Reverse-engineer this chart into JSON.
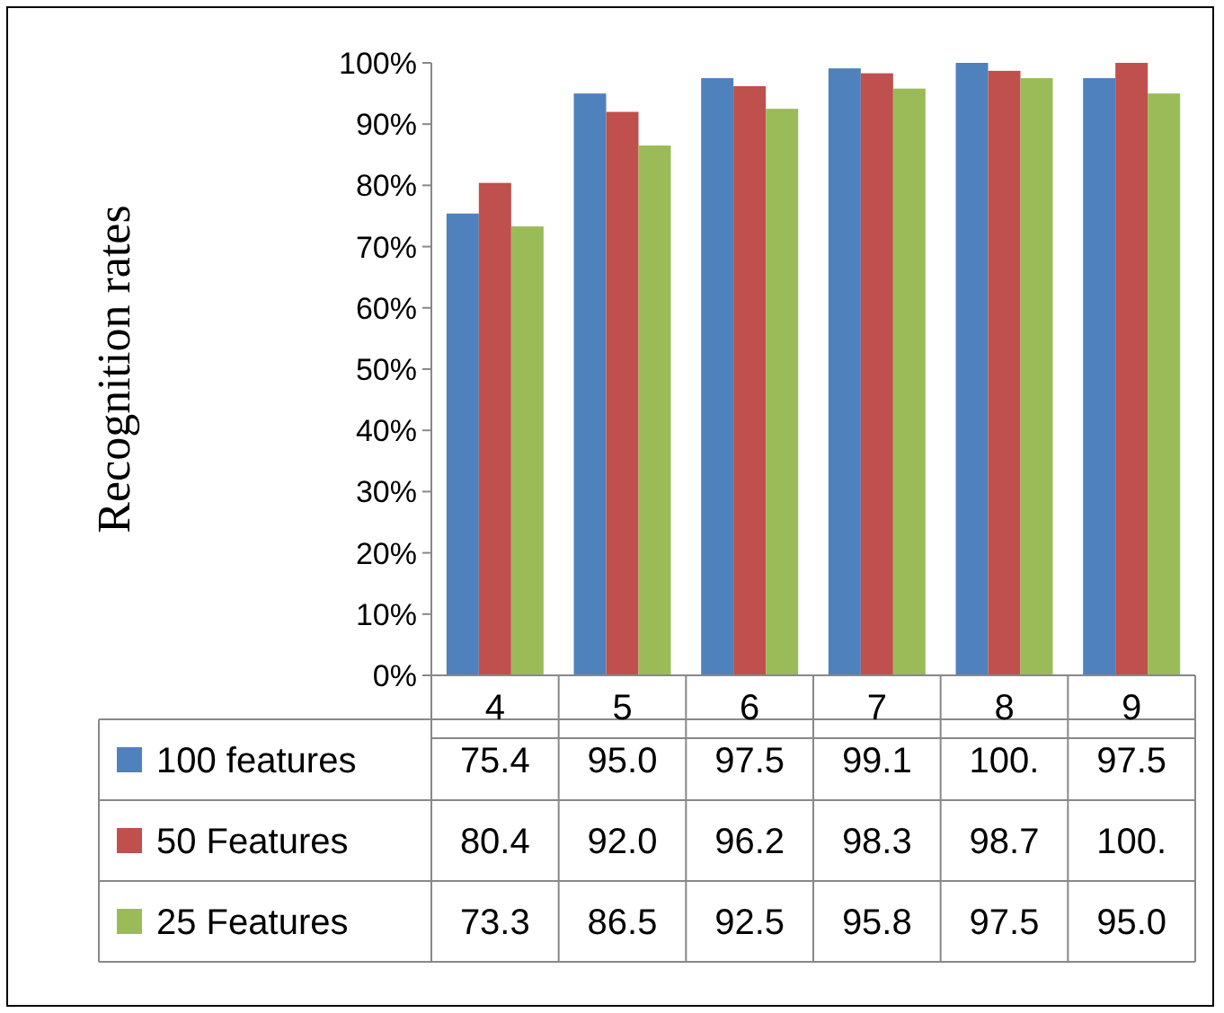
{
  "chart_data": {
    "type": "bar",
    "ylabel": "Recognition rates",
    "categories": [
      "4",
      "5",
      "6",
      "7",
      "8",
      "9"
    ],
    "series": [
      {
        "name": "100 features",
        "color": "#4f81bd",
        "values": [
          75.4,
          95.0,
          97.5,
          99.1,
          100,
          97.5
        ],
        "value_labels": [
          "75.4",
          "95.0",
          "97.5",
          "99.1",
          "100.",
          "97.5"
        ]
      },
      {
        "name": "50 Features",
        "color": "#c0504d",
        "values": [
          80.4,
          92.0,
          96.2,
          98.3,
          98.7,
          100
        ],
        "value_labels": [
          "80.4",
          "92.0",
          "96.2",
          "98.3",
          "98.7",
          "100."
        ]
      },
      {
        "name": "25 Features",
        "color": "#9bbb59",
        "values": [
          73.3,
          86.5,
          92.5,
          95.8,
          97.5,
          95.0
        ],
        "value_labels": [
          "73.3",
          "86.5",
          "92.5",
          "95.8",
          "97.5",
          "95.0"
        ]
      }
    ],
    "ylim": [
      0,
      100
    ],
    "yticks": [
      {
        "value": 0,
        "label": "0%"
      },
      {
        "value": 10,
        "label": "10%"
      },
      {
        "value": 20,
        "label": "20%"
      },
      {
        "value": 30,
        "label": "30%"
      },
      {
        "value": 40,
        "label": "40%"
      },
      {
        "value": 50,
        "label": "50%"
      },
      {
        "value": 60,
        "label": "60%"
      },
      {
        "value": 70,
        "label": "70%"
      },
      {
        "value": 80,
        "label": "80%"
      },
      {
        "value": 90,
        "label": "90%"
      },
      {
        "value": 100,
        "label": "100%"
      }
    ],
    "grid": false,
    "legend": "bottom left"
  }
}
